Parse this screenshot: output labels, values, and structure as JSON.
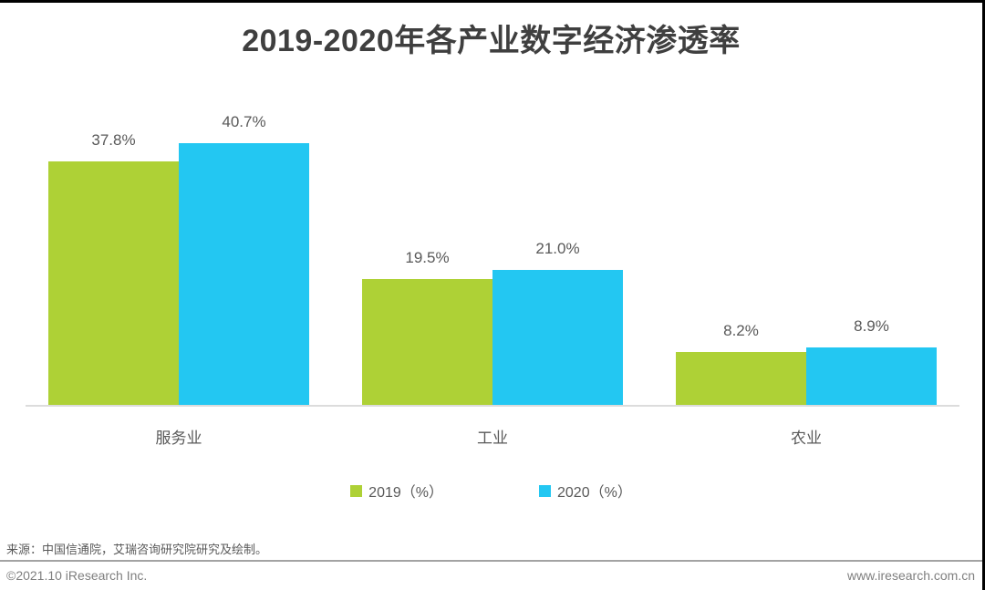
{
  "title": "2019-2020年各产业数字经济渗透率",
  "chart_data": {
    "type": "bar",
    "categories": [
      "服务业",
      "工业",
      "农业"
    ],
    "series": [
      {
        "name": "2019（%）",
        "color": "#aed136",
        "values": [
          37.8,
          19.5,
          8.2
        ]
      },
      {
        "name": "2020（%）",
        "color": "#23c7f2",
        "values": [
          40.7,
          21.0,
          8.9
        ]
      }
    ],
    "data_labels": [
      [
        "37.8%",
        "40.7%"
      ],
      [
        "19.5%",
        "21.0%"
      ],
      [
        "8.2%",
        "8.9%"
      ]
    ],
    "value_suffix": "%",
    "ylim": [
      0,
      51
    ],
    "grid": false,
    "legend_position": "bottom"
  },
  "footer": {
    "source": "来源：中国信通院，艾瑞咨询研究院研究及绘制。",
    "copyright": "©2021.10 iResearch Inc.",
    "website": "www.iresearch.com.cn"
  },
  "colors": {
    "series_2019": "#aed136",
    "series_2020": "#23c7f2",
    "title_text": "#3f3f3f",
    "label_text": "#595959",
    "axis_line": "#dcdcdc",
    "divider_line": "#a3a3a3",
    "footer_text": "#7f7f7f"
  }
}
